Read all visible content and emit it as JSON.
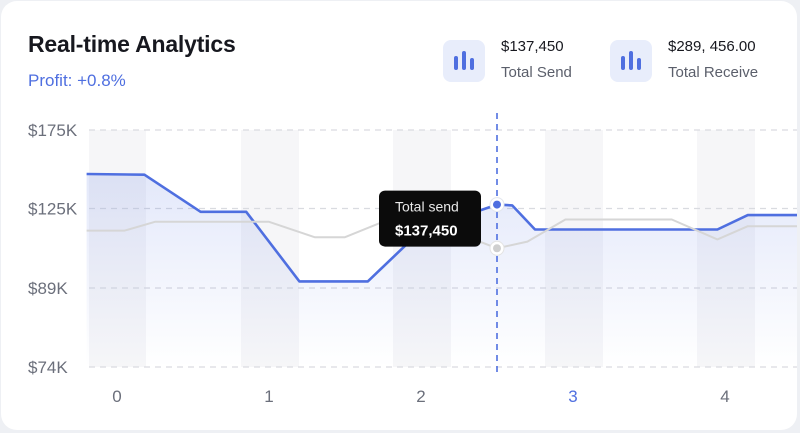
{
  "header": {
    "title": "Real-time Analytics",
    "profit": "Profit: +0.8%"
  },
  "stats": [
    {
      "value": "$137,450",
      "label": "Total Send",
      "icon": "bar-chart-icon"
    },
    {
      "value": "$289, 456.00",
      "label": "Total Receive",
      "icon": "bar-chart-icon"
    }
  ],
  "colors": {
    "accent": "#4f6fe0",
    "secondary_line": "#d6d6d6",
    "tooltip_bg": "#0b0b0b"
  },
  "tooltip": {
    "label": "Total send",
    "value": "$137,450"
  },
  "chart_data": {
    "type": "line",
    "title": "",
    "xlabel": "",
    "ylabel": "",
    "x_ticks": [
      "0",
      "1",
      "2",
      "3",
      "4"
    ],
    "active_x_tick": "3",
    "y_ticks": [
      {
        "label": "$175K",
        "value": 175
      },
      {
        "label": "$125K",
        "value": 125
      },
      {
        "label": "$89K",
        "value": 89
      },
      {
        "label": "$74K",
        "value": 74
      }
    ],
    "xlim": [
      -0.2,
      4.5
    ],
    "cursor_x": 2.5,
    "series": [
      {
        "name": "Total send",
        "style": "primary",
        "points": [
          [
            -0.2,
            147
          ],
          [
            0.18,
            146.5
          ],
          [
            0.55,
            123.5
          ],
          [
            0.85,
            123.5
          ],
          [
            1.2,
            92
          ],
          [
            1.65,
            92
          ],
          [
            2.0,
            115
          ],
          [
            2.5,
            127.5
          ],
          [
            2.6,
            127
          ],
          [
            2.75,
            115.5
          ],
          [
            3.95,
            115.5
          ],
          [
            4.15,
            122
          ],
          [
            4.5,
            122
          ]
        ]
      },
      {
        "name": "Total receive",
        "style": "secondary",
        "points": [
          [
            -0.2,
            115
          ],
          [
            0.05,
            115
          ],
          [
            0.25,
            119
          ],
          [
            1.0,
            119
          ],
          [
            1.3,
            112
          ],
          [
            1.5,
            112
          ],
          [
            1.75,
            119
          ],
          [
            2.05,
            119
          ],
          [
            2.5,
            107
          ],
          [
            2.7,
            110
          ],
          [
            2.95,
            120
          ],
          [
            3.65,
            120
          ],
          [
            3.95,
            111
          ],
          [
            4.15,
            117
          ],
          [
            4.5,
            117
          ]
        ]
      }
    ],
    "highlight": {
      "x": 2.5,
      "send": 127.5,
      "receive": 107
    }
  }
}
